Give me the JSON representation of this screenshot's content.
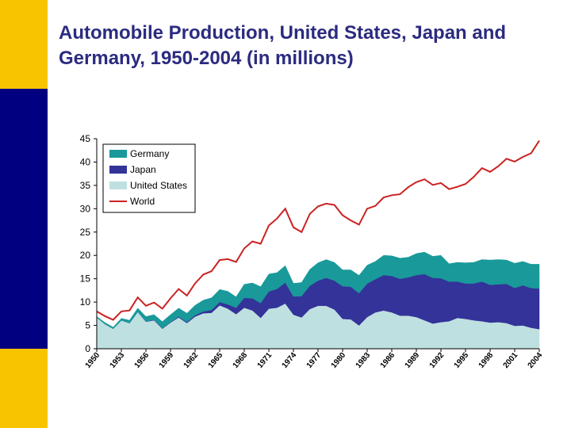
{
  "page": {
    "title": "Automobile Production, United States, Japan and Germany, 1950-2004 (in millions)",
    "colors": {
      "yellow": "#f8c400",
      "navy": "#000080",
      "title": "#2b2b80"
    }
  },
  "chart_data": {
    "type": "area",
    "title": "Automobile Production, United States, Japan and Germany, 1950-2004 (in millions)",
    "xlabel": "",
    "ylabel": "",
    "x": [
      1950,
      1951,
      1952,
      1953,
      1954,
      1955,
      1956,
      1957,
      1958,
      1959,
      1960,
      1961,
      1962,
      1963,
      1964,
      1965,
      1966,
      1967,
      1968,
      1969,
      1970,
      1971,
      1972,
      1973,
      1974,
      1975,
      1976,
      1977,
      1978,
      1979,
      1980,
      1981,
      1982,
      1983,
      1984,
      1985,
      1986,
      1987,
      1988,
      1989,
      1990,
      1991,
      1992,
      1993,
      1994,
      1995,
      1996,
      1997,
      1998,
      1999,
      2000,
      2001,
      2002,
      2003,
      2004
    ],
    "xticks": [
      "1950",
      "1953",
      "1956",
      "1959",
      "1962",
      "1965",
      "1968",
      "1971",
      "1974",
      "1977",
      "1980",
      "1983",
      "1986",
      "1989",
      "1992",
      "1995",
      "1998",
      "2001",
      "2004"
    ],
    "yticks": [
      "0",
      "5",
      "10",
      "15",
      "20",
      "25",
      "30",
      "35",
      "40",
      "45"
    ],
    "ylim": [
      0,
      45
    ],
    "xlim": [
      1950,
      2004
    ],
    "legend_position": "top-left",
    "stacked": true,
    "series": [
      {
        "name": "United States",
        "kind": "area",
        "color": "#bfe0e0",
        "values": [
          6.7,
          5.3,
          4.3,
          6.1,
          5.5,
          7.9,
          5.8,
          6.1,
          4.3,
          5.6,
          6.7,
          5.5,
          6.9,
          7.6,
          7.7,
          9.3,
          8.6,
          7.4,
          8.8,
          8.2,
          6.6,
          8.6,
          8.8,
          9.7,
          7.3,
          6.7,
          8.5,
          9.2,
          9.2,
          8.4,
          6.4,
          6.3,
          5.0,
          6.8,
          7.8,
          8.2,
          7.8,
          7.1,
          7.1,
          6.8,
          6.1,
          5.4,
          5.7,
          5.9,
          6.6,
          6.4,
          6.1,
          5.9,
          5.6,
          5.7,
          5.5,
          4.9,
          5.0,
          4.5,
          4.2
        ]
      },
      {
        "name": "Japan",
        "kind": "area",
        "color": "#333399",
        "values": [
          0.0,
          0.0,
          0.0,
          0.0,
          0.0,
          0.0,
          0.1,
          0.1,
          0.1,
          0.1,
          0.2,
          0.2,
          0.3,
          0.4,
          0.6,
          0.7,
          0.9,
          1.4,
          2.1,
          2.6,
          3.2,
          3.7,
          4.0,
          4.5,
          3.9,
          4.6,
          5.0,
          5.4,
          6.0,
          6.2,
          7.0,
          7.0,
          6.9,
          7.2,
          7.1,
          7.6,
          7.8,
          7.9,
          8.2,
          9.0,
          9.9,
          9.8,
          9.4,
          8.5,
          7.8,
          7.6,
          7.9,
          8.5,
          8.1,
          8.1,
          8.4,
          8.1,
          8.6,
          8.5,
          8.7
        ]
      },
      {
        "name": "Germany",
        "kind": "area",
        "color": "#199999",
        "values": [
          0.2,
          0.3,
          0.3,
          0.4,
          0.6,
          0.8,
          1.0,
          1.1,
          1.4,
          1.6,
          1.8,
          1.9,
          2.1,
          2.4,
          2.6,
          2.7,
          2.8,
          2.3,
          2.9,
          3.3,
          3.5,
          3.7,
          3.5,
          3.6,
          2.8,
          2.9,
          3.5,
          3.8,
          3.9,
          3.9,
          3.5,
          3.6,
          3.8,
          3.9,
          3.8,
          4.2,
          4.3,
          4.4,
          4.3,
          4.6,
          4.7,
          4.6,
          4.9,
          3.8,
          4.1,
          4.4,
          4.5,
          4.7,
          5.3,
          5.3,
          5.1,
          5.3,
          5.1,
          5.1,
          5.2
        ]
      },
      {
        "name": "World",
        "kind": "line",
        "color": "#cc2222",
        "values": [
          8.0,
          7.0,
          6.2,
          8.0,
          8.2,
          11.0,
          9.2,
          9.9,
          8.6,
          10.8,
          12.8,
          11.4,
          14.0,
          15.9,
          16.6,
          19.0,
          19.2,
          18.6,
          21.5,
          23.0,
          22.5,
          26.4,
          27.9,
          30.0,
          26.0,
          25.0,
          28.9,
          30.5,
          31.1,
          30.8,
          28.6,
          27.5,
          26.6,
          30.0,
          30.6,
          32.4,
          32.9,
          33.1,
          34.6,
          35.7,
          36.3,
          35.1,
          35.5,
          34.2,
          34.7,
          35.3,
          36.8,
          38.7,
          37.9,
          39.1,
          40.7,
          40.1,
          41.1,
          41.9,
          44.6
        ]
      }
    ]
  }
}
